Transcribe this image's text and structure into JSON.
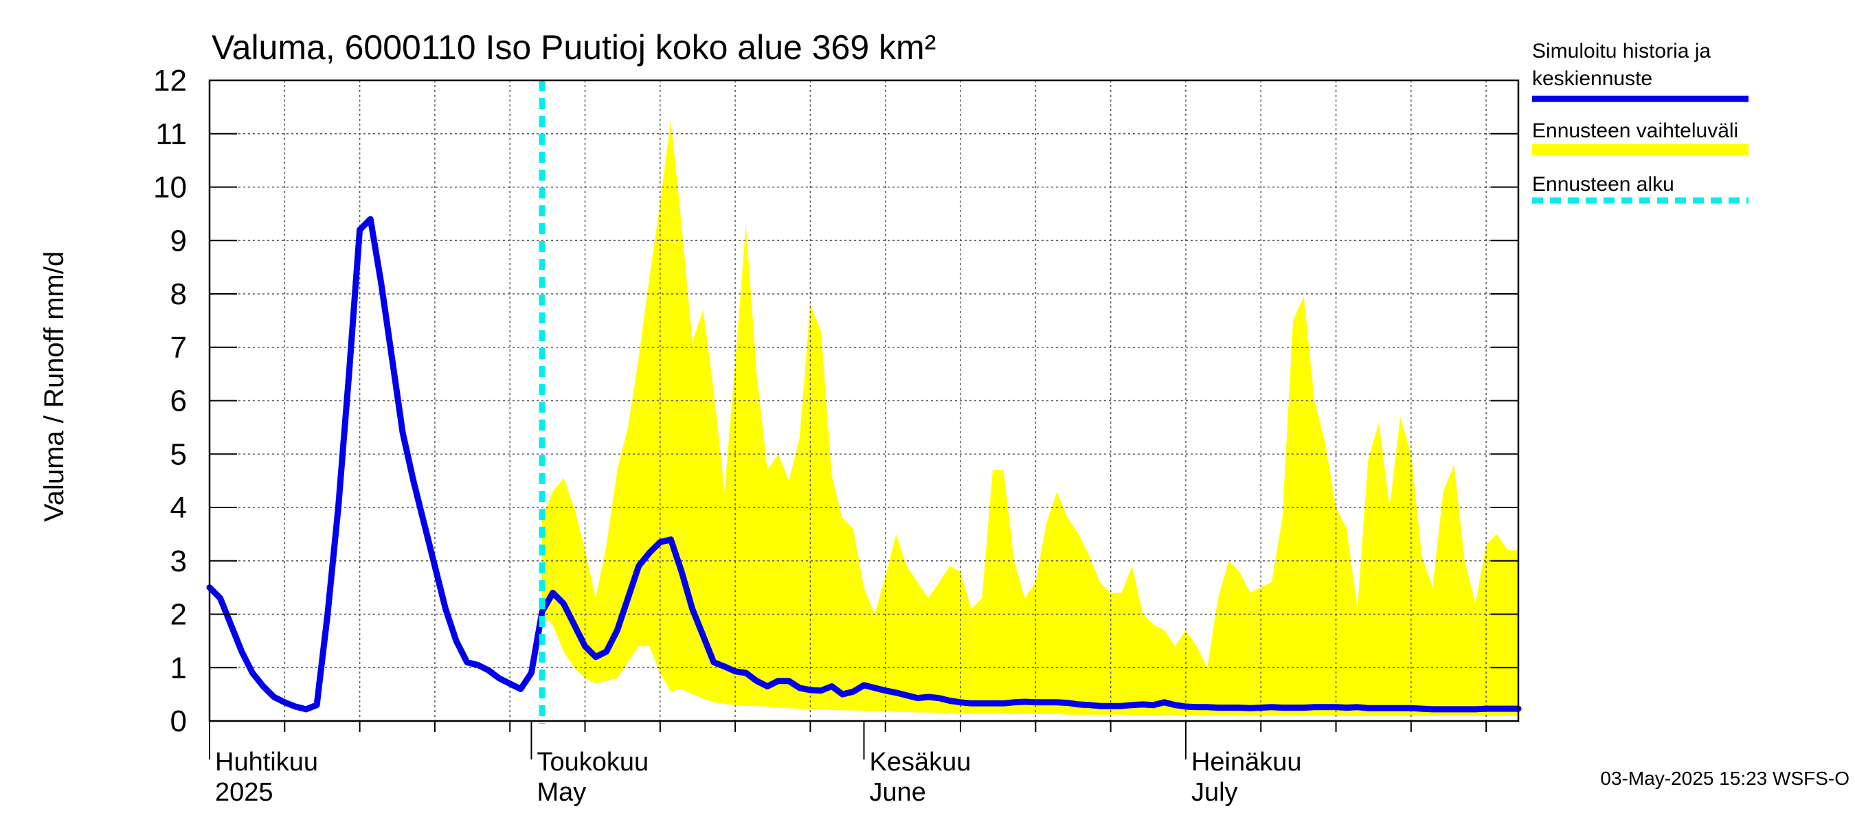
{
  "chart_data": {
    "type": "area",
    "title": "Valuma, 6000110 Iso Puutioj koko alue 369 km²",
    "ylabel": "Valuma / Runoff     mm/d",
    "xlabel": "",
    "ylim": [
      0,
      12
    ],
    "yticks": [
      "0",
      "1",
      "2",
      "3",
      "4",
      "5",
      "6",
      "7",
      "8",
      "9",
      "10",
      "11",
      "12"
    ],
    "xlim_days": [
      0,
      122
    ],
    "months": [
      {
        "day": 0,
        "fi": "Huhtikuu",
        "en": "2025"
      },
      {
        "day": 30,
        "fi": "Toukokuu",
        "en": "May"
      },
      {
        "day": 61,
        "fi": "Kesäkuu",
        "en": "June"
      },
      {
        "day": 91,
        "fi": "Heinäkuu",
        "en": "July"
      }
    ],
    "week_grid_days": [
      7,
      14,
      21,
      28,
      35,
      42,
      49,
      56,
      63,
      70,
      77,
      84,
      91,
      98,
      105,
      112,
      119
    ],
    "forecast_start_day": 31,
    "grid": true,
    "legend_position": "right",
    "legend": [
      {
        "label_line1": "Simuloitu historia ja",
        "label_line2": "keskiennuste",
        "color": "#0000ee",
        "style": "solid"
      },
      {
        "label_line1": "Ennusteen vaihteluväli",
        "label_line2": "",
        "color": "#ffff00",
        "style": "band"
      },
      {
        "label_line1": "Ennusteen alku",
        "label_line2": "",
        "color": "#00eeee",
        "style": "dashed"
      }
    ],
    "series": [
      {
        "name": "Simuloitu historia ja keskiennuste",
        "color": "#0000ee",
        "points": [
          [
            0,
            2.5
          ],
          [
            1,
            2.3
          ],
          [
            2,
            1.8
          ],
          [
            3,
            1.3
          ],
          [
            4,
            0.9
          ],
          [
            5,
            0.65
          ],
          [
            6,
            0.45
          ],
          [
            7,
            0.35
          ],
          [
            8,
            0.27
          ],
          [
            9,
            0.22
          ],
          [
            10,
            0.3
          ],
          [
            11,
            2.0
          ],
          [
            12,
            4.0
          ],
          [
            13,
            6.5
          ],
          [
            14,
            9.2
          ],
          [
            15,
            9.4
          ],
          [
            16,
            8.2
          ],
          [
            17,
            6.8
          ],
          [
            18,
            5.4
          ],
          [
            19,
            4.5
          ],
          [
            20,
            3.7
          ],
          [
            21,
            2.9
          ],
          [
            22,
            2.1
          ],
          [
            23,
            1.5
          ],
          [
            24,
            1.1
          ],
          [
            25,
            1.05
          ],
          [
            26,
            0.95
          ],
          [
            27,
            0.8
          ],
          [
            28,
            0.7
          ],
          [
            29,
            0.6
          ],
          [
            30,
            0.9
          ],
          [
            31,
            2.05
          ],
          [
            32,
            2.4
          ],
          [
            33,
            2.2
          ],
          [
            34,
            1.8
          ],
          [
            35,
            1.4
          ],
          [
            36,
            1.2
          ],
          [
            37,
            1.3
          ],
          [
            38,
            1.7
          ],
          [
            39,
            2.3
          ],
          [
            40,
            2.9
          ],
          [
            41,
            3.15
          ],
          [
            42,
            3.35
          ],
          [
            43,
            3.4
          ],
          [
            44,
            2.8
          ],
          [
            45,
            2.1
          ],
          [
            46,
            1.6
          ],
          [
            47,
            1.1
          ],
          [
            48,
            1.02
          ],
          [
            49,
            0.93
          ],
          [
            50,
            0.9
          ],
          [
            51,
            0.75
          ],
          [
            52,
            0.65
          ],
          [
            53,
            0.75
          ],
          [
            54,
            0.75
          ],
          [
            55,
            0.62
          ],
          [
            56,
            0.58
          ],
          [
            57,
            0.57
          ],
          [
            58,
            0.65
          ],
          [
            59,
            0.5
          ],
          [
            60,
            0.55
          ],
          [
            61,
            0.67
          ],
          [
            62,
            0.62
          ],
          [
            63,
            0.57
          ],
          [
            64,
            0.53
          ],
          [
            65,
            0.48
          ],
          [
            66,
            0.43
          ],
          [
            67,
            0.45
          ],
          [
            68,
            0.43
          ],
          [
            69,
            0.38
          ],
          [
            70,
            0.35
          ],
          [
            71,
            0.33
          ],
          [
            72,
            0.33
          ],
          [
            73,
            0.33
          ],
          [
            74,
            0.33
          ],
          [
            75,
            0.35
          ],
          [
            76,
            0.36
          ],
          [
            77,
            0.35
          ],
          [
            78,
            0.35
          ],
          [
            79,
            0.35
          ],
          [
            80,
            0.34
          ],
          [
            81,
            0.31
          ],
          [
            82,
            0.3
          ],
          [
            83,
            0.28
          ],
          [
            84,
            0.28
          ],
          [
            85,
            0.28
          ],
          [
            86,
            0.3
          ],
          [
            87,
            0.31
          ],
          [
            88,
            0.3
          ],
          [
            89,
            0.35
          ],
          [
            90,
            0.3
          ],
          [
            91,
            0.27
          ],
          [
            92,
            0.26
          ],
          [
            93,
            0.26
          ],
          [
            94,
            0.25
          ],
          [
            95,
            0.25
          ],
          [
            96,
            0.25
          ],
          [
            97,
            0.24
          ],
          [
            98,
            0.25
          ],
          [
            99,
            0.26
          ],
          [
            100,
            0.25
          ],
          [
            101,
            0.25
          ],
          [
            102,
            0.25
          ],
          [
            103,
            0.26
          ],
          [
            104,
            0.26
          ],
          [
            105,
            0.26
          ],
          [
            106,
            0.25
          ],
          [
            107,
            0.26
          ],
          [
            108,
            0.24
          ],
          [
            109,
            0.24
          ],
          [
            110,
            0.24
          ],
          [
            111,
            0.24
          ],
          [
            112,
            0.24
          ],
          [
            113,
            0.23
          ],
          [
            114,
            0.22
          ],
          [
            115,
            0.22
          ],
          [
            116,
            0.22
          ],
          [
            117,
            0.22
          ],
          [
            118,
            0.22
          ],
          [
            119,
            0.23
          ],
          [
            120,
            0.23
          ],
          [
            121,
            0.23
          ],
          [
            122,
            0.23
          ]
        ]
      }
    ],
    "band": {
      "name": "Ennusteen vaihteluväli",
      "color": "#ffff00",
      "points": [
        [
          31,
          2.0,
          3.8
        ],
        [
          32,
          1.8,
          4.3
        ],
        [
          33,
          1.3,
          4.55
        ],
        [
          34,
          1.0,
          4.0
        ],
        [
          35,
          0.8,
          3.2
        ],
        [
          36,
          0.7,
          2.3
        ],
        [
          37,
          0.75,
          3.3
        ],
        [
          38,
          0.8,
          4.7
        ],
        [
          39,
          1.1,
          5.5
        ],
        [
          40,
          1.4,
          6.8
        ],
        [
          41,
          1.4,
          8.3
        ],
        [
          42,
          0.9,
          9.7
        ],
        [
          43,
          0.55,
          11.25
        ],
        [
          44,
          0.6,
          9.3
        ],
        [
          45,
          0.5,
          7.1
        ],
        [
          46,
          0.42,
          7.7
        ],
        [
          47,
          0.35,
          6.2
        ],
        [
          48,
          0.32,
          4.3
        ],
        [
          49,
          0.3,
          6.7
        ],
        [
          50,
          0.28,
          9.3
        ],
        [
          51,
          0.28,
          6.5
        ],
        [
          52,
          0.27,
          4.7
        ],
        [
          53,
          0.25,
          5.0
        ],
        [
          54,
          0.24,
          4.5
        ],
        [
          55,
          0.23,
          5.3
        ],
        [
          56,
          0.22,
          7.8
        ],
        [
          57,
          0.22,
          7.3
        ],
        [
          58,
          0.21,
          4.6
        ],
        [
          59,
          0.2,
          3.8
        ],
        [
          60,
          0.2,
          3.6
        ],
        [
          61,
          0.19,
          2.5
        ],
        [
          62,
          0.18,
          2.0
        ],
        [
          63,
          0.18,
          2.7
        ],
        [
          64,
          0.17,
          3.5
        ],
        [
          65,
          0.17,
          2.9
        ],
        [
          66,
          0.16,
          2.6
        ],
        [
          67,
          0.16,
          2.3
        ],
        [
          68,
          0.15,
          2.6
        ],
        [
          69,
          0.15,
          2.9
        ],
        [
          70,
          0.15,
          2.8
        ],
        [
          71,
          0.14,
          2.1
        ],
        [
          72,
          0.14,
          2.3
        ],
        [
          73,
          0.14,
          4.7
        ],
        [
          74,
          0.14,
          4.7
        ],
        [
          75,
          0.13,
          3.0
        ],
        [
          76,
          0.13,
          2.3
        ],
        [
          77,
          0.13,
          2.6
        ],
        [
          78,
          0.13,
          3.7
        ],
        [
          79,
          0.13,
          4.3
        ],
        [
          80,
          0.12,
          3.8
        ],
        [
          81,
          0.12,
          3.5
        ],
        [
          82,
          0.12,
          3.1
        ],
        [
          83,
          0.12,
          2.6
        ],
        [
          84,
          0.12,
          2.4
        ],
        [
          85,
          0.12,
          2.4
        ],
        [
          86,
          0.11,
          2.9
        ],
        [
          87,
          0.11,
          2.0
        ],
        [
          88,
          0.11,
          1.8
        ],
        [
          89,
          0.11,
          1.7
        ],
        [
          90,
          0.11,
          1.4
        ],
        [
          91,
          0.11,
          1.7
        ],
        [
          92,
          0.1,
          1.4
        ],
        [
          93,
          0.1,
          1.0
        ],
        [
          94,
          0.1,
          2.3
        ],
        [
          95,
          0.1,
          3.0
        ],
        [
          96,
          0.1,
          2.8
        ],
        [
          97,
          0.1,
          2.4
        ],
        [
          98,
          0.1,
          2.5
        ],
        [
          99,
          0.1,
          2.6
        ],
        [
          100,
          0.1,
          3.8
        ],
        [
          101,
          0.1,
          7.5
        ],
        [
          102,
          0.1,
          7.95
        ],
        [
          103,
          0.1,
          6.0
        ],
        [
          104,
          0.1,
          5.2
        ],
        [
          105,
          0.1,
          4.0
        ],
        [
          106,
          0.09,
          3.6
        ],
        [
          107,
          0.09,
          2.1
        ],
        [
          108,
          0.09,
          4.9
        ],
        [
          109,
          0.09,
          5.6
        ],
        [
          110,
          0.09,
          4.0
        ],
        [
          111,
          0.09,
          5.7
        ],
        [
          112,
          0.09,
          5.0
        ],
        [
          113,
          0.09,
          3.1
        ],
        [
          114,
          0.09,
          2.5
        ],
        [
          115,
          0.09,
          4.3
        ],
        [
          116,
          0.09,
          4.8
        ],
        [
          117,
          0.09,
          3.0
        ],
        [
          118,
          0.09,
          2.2
        ],
        [
          119,
          0.09,
          3.3
        ],
        [
          120,
          0.09,
          3.5
        ],
        [
          121,
          0.09,
          3.2
        ],
        [
          122,
          0.09,
          3.2
        ]
      ]
    }
  },
  "footer": {
    "timestamp": "03-May-2025 15:23 WSFS-O"
  }
}
